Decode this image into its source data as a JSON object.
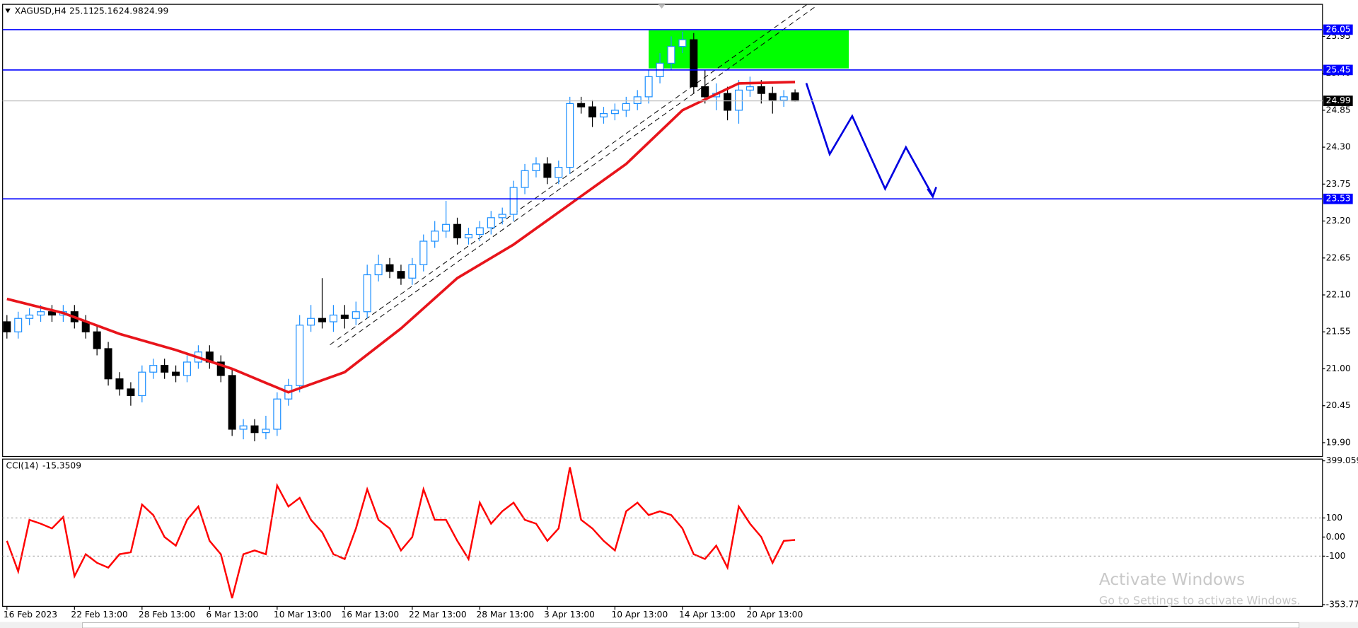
{
  "header": {
    "symbol": "XAGUSD,H4"
  },
  "chart_data": [
    {
      "type": "candlestick",
      "categories": [
        "16 Feb 2023",
        null,
        null,
        null,
        null,
        null,
        "22 Feb 13:00",
        null,
        null,
        null,
        null,
        null,
        "28 Feb 13:00",
        null,
        null,
        null,
        null,
        null,
        "6 Mar 13:00",
        null,
        null,
        null,
        null,
        null,
        "10 Mar 13:00",
        null,
        null,
        null,
        null,
        null,
        "16 Mar 13:00",
        null,
        null,
        null,
        null,
        null,
        "22 Mar 13:00",
        null,
        null,
        null,
        null,
        null,
        "28 Mar 13:00",
        null,
        null,
        null,
        null,
        null,
        "3 Apr 13:00",
        null,
        null,
        null,
        null,
        null,
        "10 Apr 13:00",
        null,
        null,
        null,
        null,
        null,
        "14 Apr 13:00",
        null,
        null,
        null,
        null,
        null,
        "20 Apr 13:00",
        null,
        null,
        null,
        null
      ],
      "open": [
        21.7,
        21.55,
        21.75,
        21.8,
        21.85,
        21.8,
        21.85,
        21.7,
        21.55,
        21.3,
        20.85,
        20.7,
        20.6,
        20.95,
        21.05,
        20.95,
        20.9,
        21.1,
        21.25,
        21.1,
        20.9,
        20.1,
        20.15,
        20.05,
        20.1,
        20.55,
        20.75,
        21.65,
        21.75,
        21.7,
        21.8,
        21.75,
        21.85,
        22.4,
        22.55,
        22.45,
        22.35,
        22.55,
        22.9,
        23.05,
        23.15,
        22.95,
        23.0,
        23.1,
        23.25,
        23.3,
        23.7,
        23.95,
        24.05,
        23.85,
        24.0,
        24.95,
        24.9,
        24.75,
        24.8,
        24.85,
        24.95,
        25.05,
        25.35,
        25.55,
        25.8,
        25.9,
        25.2,
        25.05,
        25.1,
        24.85,
        25.15,
        25.2,
        25.1,
        25.0,
        25.11
      ],
      "high": [
        21.8,
        21.85,
        21.9,
        21.95,
        21.95,
        21.95,
        21.95,
        21.8,
        21.65,
        21.4,
        20.95,
        20.8,
        21.05,
        21.15,
        21.15,
        21.05,
        21.2,
        21.35,
        21.35,
        21.2,
        21.0,
        20.25,
        20.25,
        20.3,
        20.65,
        20.85,
        21.8,
        21.95,
        22.35,
        21.95,
        21.95,
        22.0,
        22.55,
        22.7,
        22.65,
        22.55,
        22.65,
        23.0,
        23.2,
        23.5,
        23.25,
        23.1,
        23.2,
        23.35,
        23.4,
        23.8,
        24.05,
        24.15,
        24.15,
        24.1,
        25.05,
        25.05,
        25.0,
        24.9,
        24.95,
        25.05,
        25.15,
        25.45,
        25.7,
        25.95,
        26.02,
        26.0,
        25.45,
        25.25,
        25.2,
        25.3,
        25.35,
        25.3,
        25.2,
        25.15,
        25.16
      ],
      "low": [
        21.45,
        21.45,
        21.65,
        21.7,
        21.7,
        21.7,
        21.6,
        21.45,
        21.2,
        20.75,
        20.6,
        20.45,
        20.5,
        20.85,
        20.85,
        20.8,
        20.8,
        21.0,
        21.0,
        20.8,
        20.0,
        19.95,
        19.92,
        19.95,
        20.0,
        20.45,
        20.65,
        21.55,
        21.6,
        21.55,
        21.6,
        21.65,
        21.75,
        22.3,
        22.35,
        22.25,
        22.25,
        22.45,
        22.8,
        22.95,
        22.85,
        22.85,
        22.9,
        23.0,
        23.15,
        23.2,
        23.6,
        23.85,
        23.75,
        23.75,
        23.9,
        24.8,
        24.6,
        24.65,
        24.7,
        24.75,
        24.85,
        24.95,
        25.25,
        25.45,
        25.7,
        25.1,
        24.95,
        24.85,
        24.7,
        24.65,
        25.05,
        24.95,
        24.8,
        24.9,
        24.98
      ],
      "close": [
        21.55,
        21.75,
        21.8,
        21.85,
        21.8,
        21.85,
        21.7,
        21.55,
        21.3,
        20.85,
        20.7,
        20.6,
        20.95,
        21.05,
        20.95,
        20.9,
        21.1,
        21.25,
        21.1,
        20.9,
        20.1,
        20.15,
        20.05,
        20.1,
        20.55,
        20.75,
        21.65,
        21.75,
        21.7,
        21.8,
        21.75,
        21.85,
        22.4,
        22.55,
        22.45,
        22.35,
        22.55,
        22.9,
        23.05,
        23.15,
        22.95,
        23.0,
        23.1,
        23.25,
        23.3,
        23.7,
        23.95,
        24.05,
        23.85,
        24.0,
        24.95,
        24.9,
        24.75,
        24.8,
        24.85,
        24.95,
        25.05,
        25.35,
        25.55,
        25.8,
        25.9,
        25.2,
        25.05,
        25.1,
        24.85,
        25.15,
        25.2,
        25.1,
        25.0,
        25.05,
        24.99
      ],
      "up_color": "#1e90ff",
      "down_color": "#000000",
      "moving_average": {
        "x": [
          0,
          5,
          10,
          15,
          20,
          25,
          30,
          35,
          40,
          45,
          50,
          55,
          60,
          65,
          70
        ],
        "values": [
          22.04,
          21.83,
          21.52,
          21.28,
          21.0,
          20.65,
          20.95,
          21.6,
          22.35,
          22.85,
          23.45,
          24.05,
          24.85,
          25.25,
          25.27
        ],
        "color": "#e8141b"
      },
      "levels": [
        26.05,
        25.45,
        23.53
      ],
      "level_color": "#0000ff",
      "ylim": [
        19.694,
        26.427
      ],
      "yticks": [
        {
          "value": 19.9,
          "label": "19.90"
        },
        20.45,
        {
          "value": 21,
          "label": "21.00"
        },
        21.55,
        {
          "value": 22.1,
          "label": "22.10"
        },
        22.65,
        {
          "value": 23.2,
          "label": "23.20"
        },
        23.75,
        {
          "value": 24.3,
          "label": "24.30"
        },
        24.85,
        {
          "value": 25.4,
          "label": "25.40"
        },
        25.95
      ]
    },
    {
      "type": "line",
      "name": "CCI(14)",
      "color": "#ff0000",
      "values": [
        -20,
        -180,
        90,
        70,
        45,
        105,
        -205,
        -90,
        -135,
        -160,
        -90,
        -80,
        170,
        115,
        0,
        -45,
        90,
        160,
        -20,
        -90,
        -320,
        -90,
        -70,
        -90,
        270,
        160,
        205,
        90,
        25,
        -90,
        -115,
        45,
        250,
        90,
        45,
        -70,
        0,
        250,
        90,
        90,
        -20,
        -115,
        180,
        70,
        135,
        180,
        90,
        70,
        -20,
        45,
        365,
        90,
        45,
        -20,
        -70,
        135,
        180,
        115,
        135,
        115,
        45,
        -90,
        -115,
        -45,
        -160,
        160,
        70,
        0,
        -135,
        -20,
        -15.3509
      ],
      "levels": [
        100,
        -100
      ],
      "ylim": [
        -353.774,
        399.059
      ],
      "yticks": [
        399.059,
        100,
        {
          "value": 0,
          "label": "0.00"
        },
        -100,
        -353.774
      ]
    }
  ],
  "watermark": {
    "title": "Activate Windows",
    "subtitle": "Go to Settings to activate Windows."
  }
}
